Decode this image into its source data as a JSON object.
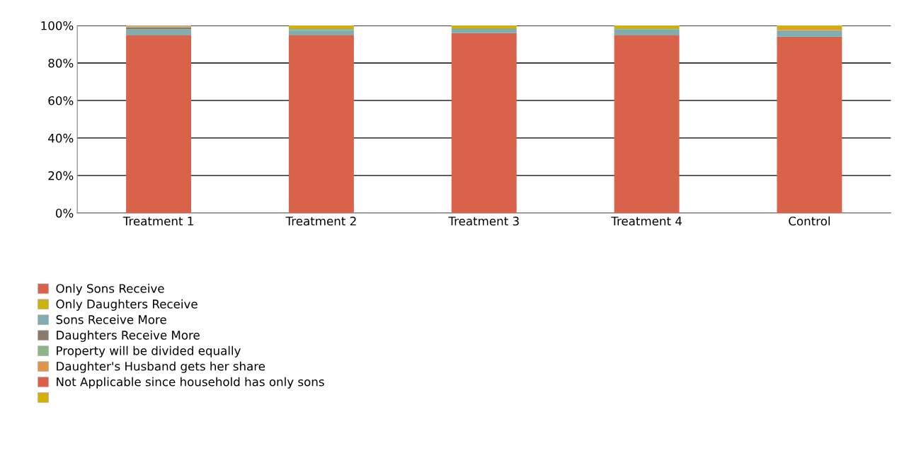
{
  "chart_data": {
    "type": "bar",
    "stacked": true,
    "categories": [
      "Treatment 1",
      "Treatment 2",
      "Treatment 3",
      "Treatment 4",
      "Control"
    ],
    "series": [
      {
        "name": "Only Sons Receive",
        "color": "#d9634a",
        "values": [
          95,
          95,
          96,
          95,
          94
        ]
      },
      {
        "name": "Only Daughters Receive",
        "color": "#c9b20c",
        "values": [
          0,
          0,
          0,
          0,
          0
        ]
      },
      {
        "name": "Sons Receive More",
        "color": "#7fadb0",
        "values": [
          3,
          2.5,
          2.5,
          3,
          3
        ]
      },
      {
        "name": "Daughters Receive More",
        "color": "#8a7a6e",
        "values": [
          1,
          0,
          0,
          0,
          0
        ]
      },
      {
        "name": "Property will be divided equally",
        "color": "#8fb38a",
        "values": [
          0.5,
          1,
          0,
          0.5,
          0.5
        ]
      },
      {
        "name": "Daughter's Husband gets her share",
        "color": "#e0964a",
        "values": [
          0.5,
          0,
          0,
          0,
          1
        ]
      },
      {
        "name": "Not Applicable since household has only sons",
        "color": "#dc5f4a",
        "values": [
          0,
          0,
          0,
          0,
          0
        ]
      },
      {
        "color": "#d4b100",
        "values": [
          0,
          1.5,
          1.5,
          1.5,
          1.5
        ]
      }
    ],
    "ylim": [
      0,
      100
    ],
    "yticks": [
      {
        "value": 0,
        "label": "0%"
      },
      {
        "value": 20,
        "label": "20%"
      },
      {
        "value": 40,
        "label": "40%"
      },
      {
        "value": 60,
        "label": "60%"
      },
      {
        "value": 80,
        "label": "80%"
      },
      {
        "value": 100,
        "label": "100%"
      }
    ],
    "grid": "y",
    "legend": "bottom left"
  }
}
